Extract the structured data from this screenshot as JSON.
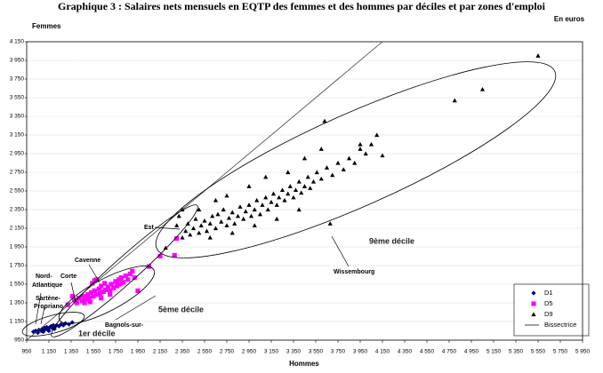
{
  "chart_data": {
    "type": "scatter",
    "title": "Graphique 3 : Salaires nets mensuels en EQTP des femmes et des hommes par déciles et par zones d'emploi",
    "y_label": "Femmes",
    "x_label": "Hommes",
    "unit_note": "En euros",
    "xlim": [
      950,
      5950
    ],
    "ylim": [
      950,
      4150
    ],
    "xticks": [
      950,
      {
        "value": 1150,
        "label": "1 150"
      },
      {
        "value": 1350,
        "label": "1 350"
      },
      {
        "value": 1550,
        "label": "1 550"
      },
      {
        "value": 1750,
        "label": "1 750"
      },
      {
        "value": 1950,
        "label": "1 950"
      },
      {
        "value": 2150,
        "label": "2 150"
      },
      {
        "value": 2350,
        "label": "2 350"
      },
      {
        "value": 2550,
        "label": "2 550"
      },
      {
        "value": 2750,
        "label": "2 750"
      },
      {
        "value": 2950,
        "label": "2 950"
      },
      {
        "value": 3150,
        "label": "3 150"
      },
      {
        "value": 3350,
        "label": "3 350"
      },
      {
        "value": 3550,
        "label": "3 550"
      },
      {
        "value": 3750,
        "label": "3 750"
      },
      {
        "value": 3950,
        "label": "3 950"
      },
      {
        "value": 4150,
        "label": "4 150"
      },
      {
        "value": 4350,
        "label": "4 350"
      },
      {
        "value": 4550,
        "label": "4 550"
      },
      {
        "value": 4750,
        "label": "4 750"
      },
      {
        "value": 4950,
        "label": "4 950"
      },
      {
        "value": 5150,
        "label": "5 150"
      },
      {
        "value": 5350,
        "label": "5 350"
      },
      {
        "value": 5550,
        "label": "5 550"
      },
      {
        "value": 5750,
        "label": "5 750"
      },
      {
        "value": 5950,
        "label": "5 950"
      }
    ],
    "yticks": [
      950,
      {
        "value": 1150,
        "label": "1 150"
      },
      {
        "value": 1350,
        "label": "1 350"
      },
      {
        "value": 1550,
        "label": "1 550"
      },
      {
        "value": 1750,
        "label": "1 750"
      },
      {
        "value": 1950,
        "label": "1 950"
      },
      {
        "value": 2150,
        "label": "2 150"
      },
      {
        "value": 2350,
        "label": "2 350"
      },
      {
        "value": 2550,
        "label": "2 550"
      },
      {
        "value": 2750,
        "label": "2 750"
      },
      {
        "value": 2950,
        "label": "2 950"
      },
      {
        "value": 3150,
        "label": "3 150"
      },
      {
        "value": 3350,
        "label": "3 350"
      },
      {
        "value": 3550,
        "label": "3 550"
      },
      {
        "value": 3750,
        "label": "3 750"
      },
      {
        "value": 3950,
        "label": "3 950"
      },
      {
        "value": 4150,
        "label": "4 150"
      }
    ],
    "grid": true,
    "legend": "lower right",
    "series": [
      {
        "name": "D1",
        "color": "#000080",
        "marker": "diamond",
        "x": [
          1010,
          1030,
          1050,
          1060,
          1080,
          1090,
          1100,
          1110,
          1120,
          1130,
          1140,
          1150,
          1160,
          1170,
          1180,
          1190,
          1200,
          1210,
          1220,
          1240,
          1260,
          1280,
          1300,
          1330,
          1360,
          1100,
          1150,
          1200
        ],
        "values": [
          1040,
          1050,
          1030,
          1060,
          1050,
          1070,
          1060,
          1080,
          1070,
          1090,
          1060,
          1080,
          1090,
          1100,
          1080,
          1110,
          1090,
          1100,
          1110,
          1100,
          1120,
          1110,
          1130,
          1120,
          1140,
          1040,
          1050,
          1070
        ]
      },
      {
        "name": "D5",
        "color": "#ff00ff",
        "marker": "square",
        "x": [
          1380,
          1400,
          1420,
          1450,
          1460,
          1480,
          1500,
          1510,
          1530,
          1550,
          1560,
          1580,
          1600,
          1610,
          1620,
          1640,
          1650,
          1660,
          1680,
          1700,
          1710,
          1730,
          1750,
          1760,
          1780,
          1790,
          1800,
          1820,
          1840,
          1860,
          1880,
          1900,
          1920,
          1580,
          1560,
          1540,
          1470,
          1520,
          1620,
          1700,
          1950,
          2150,
          2280,
          2300,
          2050,
          1320,
          1360
        ],
        "values": [
          1380,
          1350,
          1400,
          1370,
          1420,
          1390,
          1440,
          1400,
          1460,
          1420,
          1480,
          1440,
          1500,
          1450,
          1530,
          1470,
          1560,
          1490,
          1520,
          1480,
          1550,
          1510,
          1580,
          1530,
          1600,
          1550,
          1620,
          1570,
          1640,
          1600,
          1660,
          1690,
          1620,
          1600,
          1590,
          1560,
          1350,
          1360,
          1400,
          1440,
          1480,
          1850,
          1860,
          2040,
          1740,
          1330,
          1420
        ]
      },
      {
        "name": "D9",
        "color": "#000000",
        "marker": "triangle",
        "x": [
          2300,
          2320,
          2350,
          2380,
          2400,
          2420,
          2450,
          2470,
          2500,
          2520,
          2550,
          2570,
          2600,
          2620,
          2650,
          2670,
          2700,
          2720,
          2750,
          2770,
          2800,
          2820,
          2850,
          2870,
          2900,
          2920,
          2950,
          2970,
          3000,
          3020,
          3050,
          3070,
          3100,
          3120,
          3150,
          3170,
          3200,
          3220,
          3250,
          3270,
          3300,
          3320,
          3350,
          3370,
          3400,
          3420,
          3450,
          3480,
          3500,
          3530,
          3560,
          3600,
          3650,
          3700,
          3750,
          3800,
          3850,
          3900,
          3950,
          4000,
          4050,
          4150,
          3600,
          3450,
          3300,
          2950,
          2750,
          2500,
          2600,
          2800,
          3000,
          3200,
          3680,
          3630,
          4100,
          3950,
          4800,
          5050,
          5550,
          2200,
          2350,
          2650,
          3100,
          3400
        ],
        "values": [
          2180,
          2280,
          2050,
          2120,
          2200,
          2080,
          2150,
          2250,
          2100,
          2180,
          2230,
          2120,
          2200,
          2280,
          2150,
          2300,
          2220,
          2350,
          2180,
          2260,
          2320,
          2200,
          2280,
          2380,
          2250,
          2330,
          2400,
          2280,
          2350,
          2450,
          2300,
          2400,
          2480,
          2350,
          2430,
          2520,
          2400,
          2480,
          2560,
          2450,
          2520,
          2600,
          2480,
          2560,
          2650,
          2530,
          2600,
          2700,
          2580,
          2650,
          2750,
          2680,
          2800,
          2720,
          2850,
          2780,
          2900,
          2850,
          3000,
          2950,
          3050,
          2930,
          3000,
          2900,
          2750,
          2600,
          2500,
          2350,
          2050,
          2100,
          2180,
          2250,
          2200,
          3300,
          3150,
          3050,
          3520,
          3640,
          4000,
          1940,
          2350,
          2450,
          2700,
          2350
        ]
      },
      {
        "name": "Bissectrice",
        "color": "#404040",
        "marker": "line",
        "x": [
          950,
          4150
        ],
        "values": [
          950,
          4150
        ]
      }
    ],
    "annotations": [
      {
        "text": "Est"
      },
      {
        "text": "Cavenne"
      },
      {
        "text": "Nord-"
      },
      {
        "text": "Atlantique"
      },
      {
        "text": "Corte"
      },
      {
        "text": "Sartène-"
      },
      {
        "text": "Propriano"
      },
      {
        "text": "Bagnols-sur-"
      },
      {
        "text": "1er décile"
      },
      {
        "text": "5ème décile"
      },
      {
        "text": "9ème décile"
      },
      {
        "text": "Wissembourg"
      }
    ]
  }
}
